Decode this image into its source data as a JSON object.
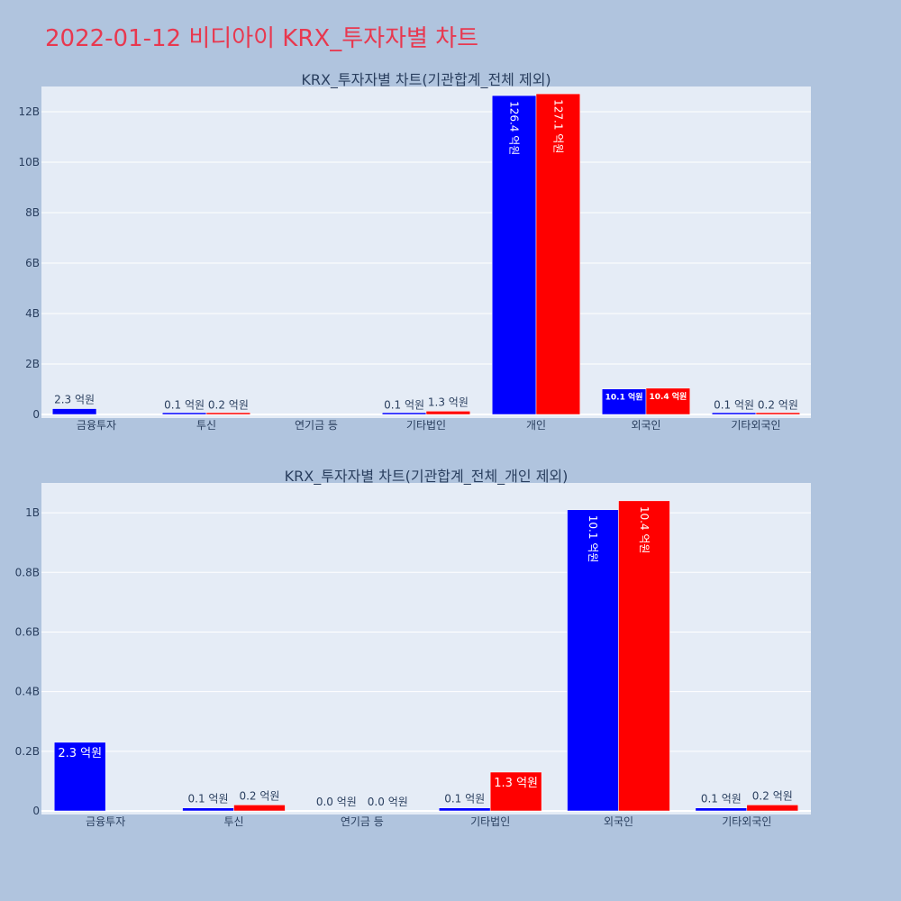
{
  "page_title": "2022-01-12 비디아이 KRX_투자자별 차트",
  "colors": {
    "background": "#b0c4de",
    "plot_bg": "#e5ecf6",
    "series1": "#0000ff",
    "series2": "#ff0000",
    "title": "#e8384f",
    "text": "#2a3f5f"
  },
  "chart_data": [
    {
      "type": "bar",
      "title": "KRX_투자자별 차트(기관합계_전체 제외)",
      "categories": [
        "금융투자",
        "투신",
        "연기금 등",
        "기타법인",
        "개인",
        "외국인",
        "기타외국인"
      ],
      "ylim": [
        0,
        13000000000
      ],
      "yticks": [
        0,
        2000000000,
        4000000000,
        6000000000,
        8000000000,
        10000000000,
        12000000000
      ],
      "yticklabels": [
        "0",
        "2B",
        "4B",
        "6B",
        "8B",
        "10B",
        "12B"
      ],
      "grid": true,
      "series": [
        {
          "values": [
            230000000,
            10000000,
            null,
            10000000,
            12640000000,
            1010000000,
            10000000
          ],
          "labels": [
            "2.3 억원",
            "0.1 억원",
            "",
            "0.1 억원",
            "126.4 억원",
            "10.1 억원",
            "0.1 억원"
          ]
        },
        {
          "values": [
            null,
            20000000,
            null,
            130000000,
            12710000000,
            1040000000,
            20000000
          ],
          "labels": [
            "",
            "0.2 억원",
            "",
            "1.3 억원",
            "127.1 억원",
            "10.4 억원",
            "0.2 억원"
          ]
        }
      ]
    },
    {
      "type": "bar",
      "title": "KRX_투자자별 차트(기관합계_전체_개인 제외)",
      "categories": [
        "금융투자",
        "투신",
        "연기금 등",
        "기타법인",
        "외국인",
        "기타외국인"
      ],
      "ylim": [
        0,
        1100000000
      ],
      "yticks": [
        0,
        200000000,
        400000000,
        600000000,
        800000000,
        1000000000
      ],
      "yticklabels": [
        "0",
        "0.2B",
        "0.4B",
        "0.6B",
        "0.8B",
        "1B"
      ],
      "grid": true,
      "series": [
        {
          "values": [
            230000000,
            10000000,
            0,
            10000000,
            1010000000,
            10000000
          ],
          "labels": [
            "2.3 억원",
            "0.1 억원",
            "0.0 억원",
            "0.1 억원",
            "10.1 억원",
            "0.1 억원"
          ]
        },
        {
          "values": [
            null,
            20000000,
            0,
            130000000,
            1040000000,
            20000000
          ],
          "labels": [
            "",
            "0.2 억원",
            "0.0 억원",
            "1.3 억원",
            "10.4 억원",
            "0.2 억원"
          ]
        }
      ]
    }
  ]
}
